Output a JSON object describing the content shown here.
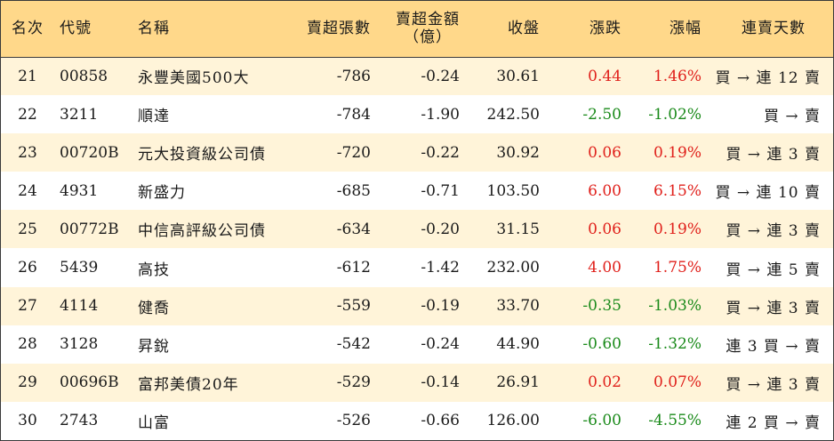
{
  "header": {
    "rank": "名次",
    "code": "代號",
    "name": "名稱",
    "oversold_lots": "賣超張數",
    "oversold_amount_line1": "賣超金額",
    "oversold_amount_line2": "（億）",
    "close": "收盤",
    "change": "漲跌",
    "change_pct": "漲幅",
    "streak": "連賣天數"
  },
  "rows": [
    {
      "rank": "21",
      "code": "00858",
      "name": "永豐美國500大",
      "lots": "-786",
      "amount": "-0.24",
      "close": "30.61",
      "change": "0.44",
      "pct": "1.46%",
      "dir": "up",
      "streak": "買 → 連 12 賣"
    },
    {
      "rank": "22",
      "code": "3211",
      "name": "順達",
      "lots": "-784",
      "amount": "-1.90",
      "close": "242.50",
      "change": "-2.50",
      "pct": "-1.02%",
      "dir": "down",
      "streak": "買 → 賣"
    },
    {
      "rank": "23",
      "code": "00720B",
      "name": "元大投資級公司債",
      "lots": "-720",
      "amount": "-0.22",
      "close": "30.92",
      "change": "0.06",
      "pct": "0.19%",
      "dir": "up",
      "streak": "買 → 連 3 賣"
    },
    {
      "rank": "24",
      "code": "4931",
      "name": "新盛力",
      "lots": "-685",
      "amount": "-0.71",
      "close": "103.50",
      "change": "6.00",
      "pct": "6.15%",
      "dir": "up",
      "streak": "買 → 連 10 賣"
    },
    {
      "rank": "25",
      "code": "00772B",
      "name": "中信高評級公司債",
      "lots": "-634",
      "amount": "-0.20",
      "close": "31.15",
      "change": "0.06",
      "pct": "0.19%",
      "dir": "up",
      "streak": "買 → 連 3 賣"
    },
    {
      "rank": "26",
      "code": "5439",
      "name": "高技",
      "lots": "-612",
      "amount": "-1.42",
      "close": "232.00",
      "change": "4.00",
      "pct": "1.75%",
      "dir": "up",
      "streak": "買 → 連 5 賣"
    },
    {
      "rank": "27",
      "code": "4114",
      "name": "健喬",
      "lots": "-559",
      "amount": "-0.19",
      "close": "33.70",
      "change": "-0.35",
      "pct": "-1.03%",
      "dir": "down",
      "streak": "買 → 連 3 賣"
    },
    {
      "rank": "28",
      "code": "3128",
      "name": "昇銳",
      "lots": "-542",
      "amount": "-0.24",
      "close": "44.90",
      "change": "-0.60",
      "pct": "-1.32%",
      "dir": "down",
      "streak": "連 3 買 → 賣"
    },
    {
      "rank": "29",
      "code": "00696B",
      "name": "富邦美債20年",
      "lots": "-529",
      "amount": "-0.14",
      "close": "26.91",
      "change": "0.02",
      "pct": "0.07%",
      "dir": "up",
      "streak": "買 → 連 3 賣"
    },
    {
      "rank": "30",
      "code": "2743",
      "name": "山富",
      "lots": "-526",
      "amount": "-0.66",
      "close": "126.00",
      "change": "-6.00",
      "pct": "-4.55%",
      "dir": "down",
      "streak": "連 2 買 → 賣"
    }
  ],
  "colors": {
    "header_bg": "#ffd88a",
    "stripe_bg": "#fff4d9",
    "up": "#e0201b",
    "down": "#1a8a1a"
  }
}
